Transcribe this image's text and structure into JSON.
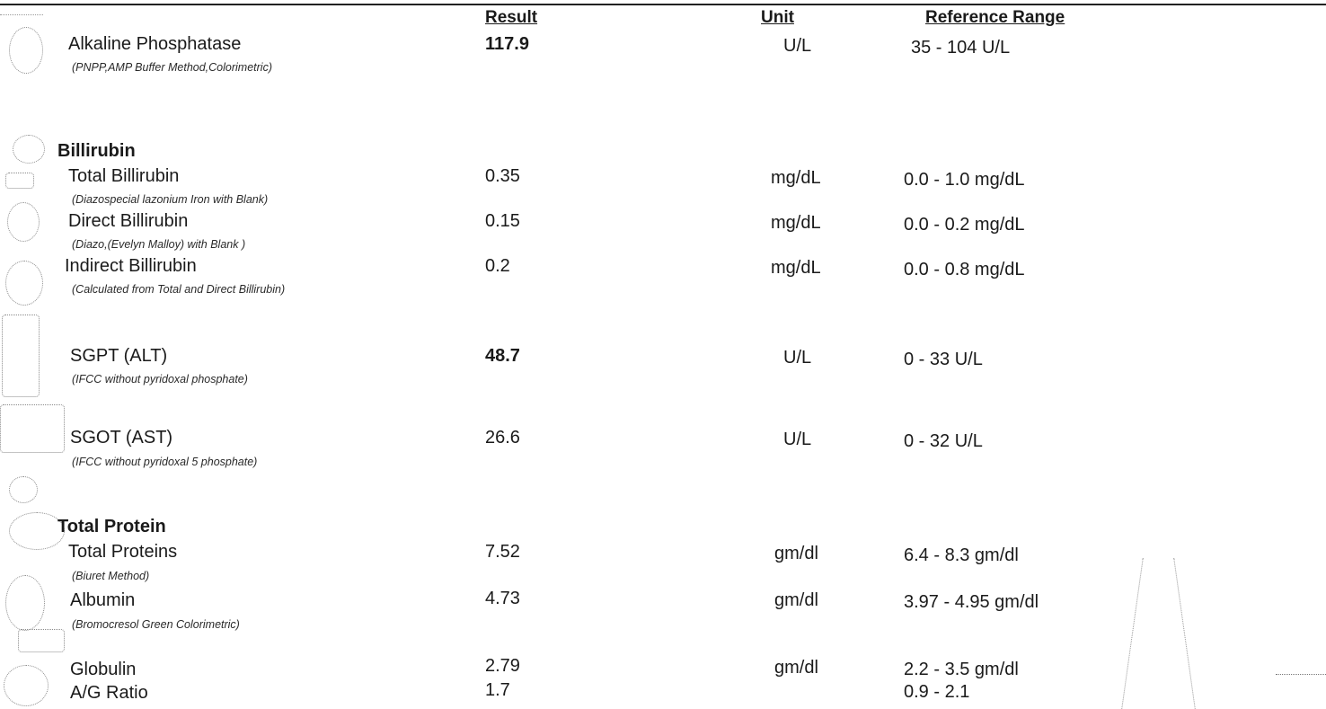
{
  "headers": {
    "result": "Result",
    "unit": "Unit",
    "reference_range": "Reference Range"
  },
  "rows": {
    "alp": {
      "name": "Alkaline Phosphatase",
      "method": "(PNPP,AMP Buffer Method,Colorimetric)",
      "result": "117.9",
      "unit": "U/L",
      "range": "35 - 104 U/L",
      "result_bold": true
    },
    "bilirubin_section": {
      "name": "Billirubin"
    },
    "total_bil": {
      "name": "Total Billirubin",
      "method": "(Diazospecial lazonium Iron with Blank)",
      "result": "0.35",
      "unit": "mg/dL",
      "range": "0.0 - 1.0 mg/dL"
    },
    "direct_bil": {
      "name": "Direct Billirubin",
      "method": "(Diazo,(Evelyn Malloy) with Blank )",
      "result": "0.15",
      "unit": "mg/dL",
      "range": "0.0 - 0.2 mg/dL"
    },
    "indirect_bil": {
      "name": "Indirect Billirubin",
      "method": "(Calculated from Total and Direct Billirubin)",
      "result": "0.2",
      "unit": "mg/dL",
      "range": "0.0 - 0.8 mg/dL"
    },
    "sgpt": {
      "name": "SGPT (ALT)",
      "method": "(IFCC without pyridoxal phosphate)",
      "result": "48.7",
      "unit": "U/L",
      "range": "0 - 33 U/L",
      "result_bold": true
    },
    "sgot": {
      "name": "SGOT (AST)",
      "method": "(IFCC without pyridoxal 5 phosphate)",
      "result": "26.6",
      "unit": "U/L",
      "range": "0 - 32 U/L"
    },
    "protein_section": {
      "name": "Total Protein"
    },
    "total_proteins": {
      "name": "Total Proteins",
      "method": "(Biuret Method)",
      "result": "7.52",
      "unit": "gm/dl",
      "range": "6.4 - 8.3 gm/dl"
    },
    "albumin": {
      "name": "Albumin",
      "method": "(Bromocresol Green Colorimetric)",
      "result": "4.73",
      "unit": "gm/dl",
      "range": "3.97 - 4.95 gm/dl"
    },
    "globulin": {
      "name": "Globulin",
      "result": "2.79",
      "unit": "gm/dl",
      "range": "2.2 - 3.5 gm/dl"
    },
    "ag_ratio": {
      "name": "A/G Ratio",
      "result": "1.7",
      "range": "0.9 - 2.1"
    }
  }
}
